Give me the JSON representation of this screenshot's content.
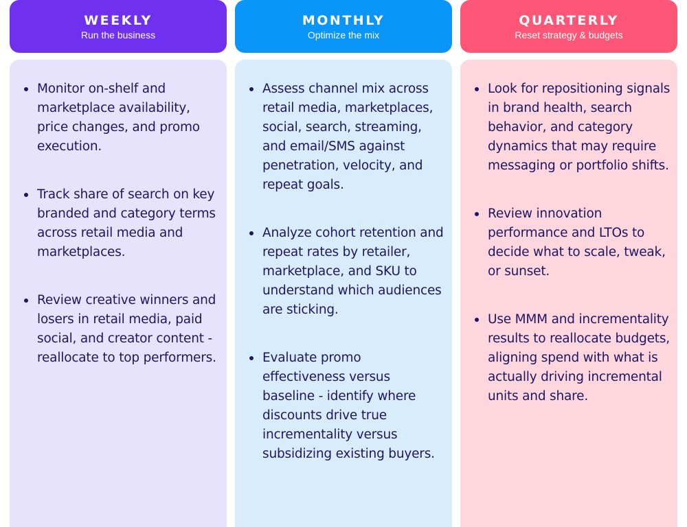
{
  "colors": {
    "weekly_header": "#7030f0",
    "weekly_body": "#e8e3fc",
    "monthly_header": "#0996f8",
    "monthly_body": "#d9ecfc",
    "quarterly_header": "#fd5676",
    "quarterly_body": "#fdd6de",
    "text": "#1e1660"
  },
  "columns": [
    {
      "title": "WEEKLY",
      "subtitle": "Run the business",
      "items": [
        "Monitor on-shelf and marketplace availability, price changes, and promo execution.",
        "Track share of search on key branded and category terms across retail media and marketplaces.",
        "Review creative winners and losers in retail media, paid social, and creator content - reallocate to top performers."
      ]
    },
    {
      "title": "MONTHLY",
      "subtitle": "Optimize the mix",
      "items": [
        "Assess channel mix across retail media, marketplaces, social, search, streaming, and email/SMS against penetration, velocity, and repeat goals.",
        "Analyze cohort retention and repeat rates by retailer, marketplace, and SKU to understand which audiences are sticking.",
        "Evaluate promo effectiveness versus baseline - identify where discounts drive true incrementality versus subsidizing existing buyers."
      ]
    },
    {
      "title": "QUARTERLY",
      "subtitle": "Reset strategy & budgets",
      "items": [
        "Look for repositioning signals in brand health, search behavior, and category dynamics that may require messaging or portfolio shifts.",
        "Review innovation performance and LTOs to decide what to scale, tweak, or sunset.",
        "Use MMM and incrementality results to reallocate budgets, aligning spend with what is actually driving incremental units and share."
      ]
    }
  ]
}
